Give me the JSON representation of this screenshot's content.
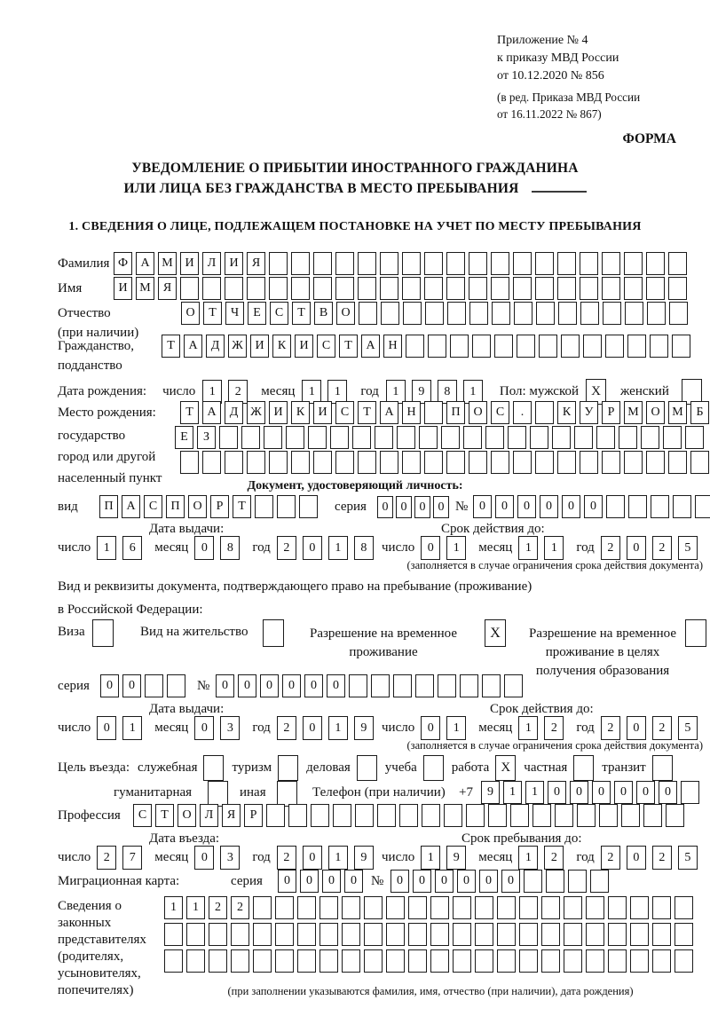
{
  "header": {
    "line1": "Приложение № 4",
    "line2": "к приказу МВД России",
    "line3": "от 10.12.2020 № 856",
    "sub1": "(в ред. Приказа МВД России",
    "sub2": "от 16.11.2022 № 867)",
    "form_label": "ФОРМА"
  },
  "title": {
    "line1": "УВЕДОМЛЕНИЕ О ПРИБЫТИИ ИНОСТРАННОГО ГРАЖДАНИНА",
    "line2": "ИЛИ ЛИЦА БЕЗ ГРАЖДАНСТВА В МЕСТО ПРЕБЫВАНИЯ"
  },
  "section1_heading": "1. СВЕДЕНИЯ О ЛИЦЕ, ПОДЛЕЖАЩЕМ ПОСТАНОВКЕ НА УЧЕТ ПО МЕСТУ ПРЕБЫВАНИЯ",
  "date_labels": {
    "day": "число",
    "month": "месяц",
    "year": "год"
  },
  "person": {
    "surname_label": "Фамилия",
    "surname": {
      "t": "ФАМИЛИЯ",
      "n": 26
    },
    "name_label": "Имя",
    "name": {
      "t": "ИМЯ",
      "n": 26
    },
    "patronymic_label": "Отчество",
    "patronymic_label2": "(при наличии)",
    "patronymic": {
      "t": "ОТЧЕСТВО",
      "n": 23
    },
    "citizenship_label": "Гражданство,",
    "citizenship_label2": "подданство",
    "citizenship": {
      "t": "ТАДЖИКИСТАН",
      "n": 24
    },
    "birth_date_label": "Дата рождения:",
    "birth_day": {
      "t": "12",
      "n": 2
    },
    "birth_month": {
      "t": "11",
      "n": 2
    },
    "birth_year": {
      "t": "1981",
      "n": 4
    },
    "sex_label": "Пол: мужской",
    "sex_male": {
      "t": "X",
      "n": 1
    },
    "sex_female_label": "женский",
    "sex_female": {
      "t": "",
      "n": 1
    },
    "birth_place_label1": "Место рождения:",
    "birth_place_label2": "государство",
    "birth_place_label3": "город или другой",
    "birth_place_label4": "населенный пункт",
    "birth_place_row1": {
      "t": "ТАДЖИКИСТАН ПОС. КУРМОМБ",
      "n": 24
    },
    "birth_place_row2": {
      "t": "ЕЗ",
      "n": 24
    },
    "birth_place_row3": {
      "t": "",
      "n": 24
    }
  },
  "identity_doc": {
    "heading": "Документ, удостоверяющий личность:",
    "type_label": "вид",
    "type": {
      "t": "ПАСПОРТ",
      "n": 10
    },
    "series_label": "серия",
    "series": {
      "t": "0000",
      "n": 4
    },
    "number_sign": "№",
    "number": {
      "t": "000000",
      "n": 11
    },
    "issue_label": "Дата выдачи:",
    "issue_day": {
      "t": "16",
      "n": 2
    },
    "issue_month": {
      "t": "08",
      "n": 2
    },
    "issue_year": {
      "t": "2018",
      "n": 4
    },
    "expiry_label": "Срок действия до:",
    "expiry_day": {
      "t": "01",
      "n": 2
    },
    "expiry_month": {
      "t": "11",
      "n": 2
    },
    "expiry_year": {
      "t": "2025",
      "n": 4
    },
    "note": "(заполняется в случае ограничения срока действия документа)"
  },
  "residence_doc": {
    "intro1": "Вид и реквизиты документа, подтверждающего право на пребывание (проживание)",
    "intro2": "в Российской Федерации:",
    "opt1_label": "Виза",
    "opt1_box": {
      "t": "",
      "n": 1
    },
    "opt2_label": "Вид на жительство",
    "opt2_box": {
      "t": "",
      "n": 1
    },
    "opt3_label1": "Разрешение на временное",
    "opt3_label2": "проживание",
    "opt3_box": {
      "t": "X",
      "n": 1
    },
    "opt4_label1": "Разрешение на временное",
    "opt4_label2": "проживание в целях",
    "opt4_label3": "получения образования",
    "opt4_box": {
      "t": "",
      "n": 1
    },
    "series_label": "серия",
    "series": {
      "t": "00",
      "n": 4
    },
    "number_sign": "№",
    "number": {
      "t": "000000",
      "n": 14
    },
    "issue_label": "Дата выдачи:",
    "issue_day": {
      "t": "01",
      "n": 2
    },
    "issue_month": {
      "t": "03",
      "n": 2
    },
    "issue_year": {
      "t": "2019",
      "n": 4
    },
    "expiry_label": "Срок действия до:",
    "expiry_day": {
      "t": "01",
      "n": 2
    },
    "expiry_month": {
      "t": "12",
      "n": 2
    },
    "expiry_year": {
      "t": "2025",
      "n": 4
    },
    "note": "(заполняется в случае ограничения срока действия документа)"
  },
  "visit": {
    "purpose_label": "Цель въезда:",
    "p1_label": "служебная",
    "p1_box": {
      "t": "",
      "n": 1
    },
    "p2_label": "туризм",
    "p2_box": {
      "t": "",
      "n": 1
    },
    "p3_label": "деловая",
    "p3_box": {
      "t": "",
      "n": 1
    },
    "p4_label": "учеба",
    "p4_box": {
      "t": "",
      "n": 1
    },
    "p5_label": "работа",
    "p5_box": {
      "t": "X",
      "n": 1
    },
    "p6_label": "частная",
    "p6_box": {
      "t": "",
      "n": 1
    },
    "p7_label": "транзит",
    "p7_box": {
      "t": "",
      "n": 1
    },
    "p8_label": "гуманитарная",
    "p8_box": {
      "t": "",
      "n": 1
    },
    "p9_label": "иная",
    "p9_box": {
      "t": "",
      "n": 1
    },
    "phone_label": "Телефон (при наличии)",
    "phone_prefix": "+7",
    "phone": {
      "t": "911000000",
      "n": 10
    },
    "profession_label": "Профессия",
    "profession": {
      "t": "СТОЛЯР",
      "n": 25
    }
  },
  "stay": {
    "entry_label": "Дата въезда:",
    "entry_day": {
      "t": "27",
      "n": 2
    },
    "entry_month": {
      "t": "03",
      "n": 2
    },
    "entry_year": {
      "t": "2019",
      "n": 4
    },
    "until_label": "Срок пребывания до:",
    "until_day": {
      "t": "19",
      "n": 2
    },
    "until_month": {
      "t": "12",
      "n": 2
    },
    "until_year": {
      "t": "2025",
      "n": 4
    },
    "migration_card_label": "Миграционная карта:",
    "series_label": "серия",
    "series": {
      "t": "0000",
      "n": 4
    },
    "number_sign": "№",
    "number": {
      "t": "000000",
      "n": 10
    }
  },
  "representatives": {
    "label1": "Сведения о",
    "label2": "законных",
    "label3": "представителях",
    "label4": "(родителях,",
    "label5": "усыновителях,",
    "label6": "попечителях)",
    "row1": {
      "t": "1122",
      "n": 24
    },
    "row2": {
      "t": "",
      "n": 24
    },
    "row3": {
      "t": "",
      "n": 24
    },
    "note": "(при заполнении указываются фамилия, имя, отчество (при наличии), дата рождения)"
  }
}
